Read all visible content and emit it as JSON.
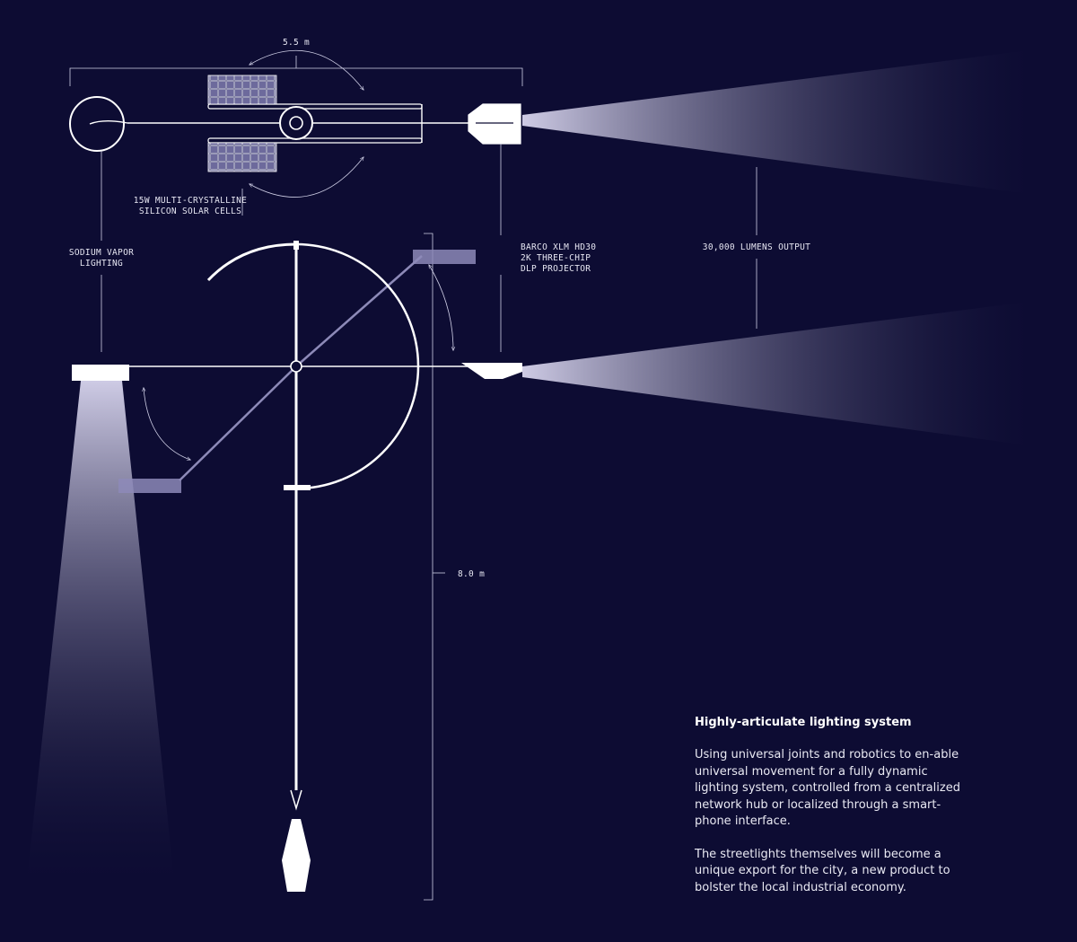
{
  "labels": {
    "width_dim": "5.5 m",
    "height_dim": "8.0 m",
    "solar_line1": "15W MULTI-CRYSTALLINE",
    "solar_line2": "SILICON SOLAR CELLS",
    "sodium_line1": "SODIUM VAPOR",
    "sodium_line2": "LIGHTING",
    "projector_line1": "BARCO XLM HD30",
    "projector_line2": "2K THREE-CHIP",
    "projector_line3": "DLP PROJECTOR",
    "lumens": "30,000 LUMENS OUTPUT"
  },
  "info": {
    "heading": "Highly-articulate lighting system",
    "paragraph1": "Using universal joints and robotics to en-able universal movement for a fully dynamic lighting system, controlled from a centralized network hub or localized through a smart-phone interface.",
    "paragraph2": "The streetlights themselves will become a unique export for the city, a new product to bolster the local industrial economy."
  },
  "colors": {
    "background": "#0d0c33",
    "line": "#ffffff",
    "beam": "#c9c6e6",
    "panel": "#8d8ab8"
  }
}
